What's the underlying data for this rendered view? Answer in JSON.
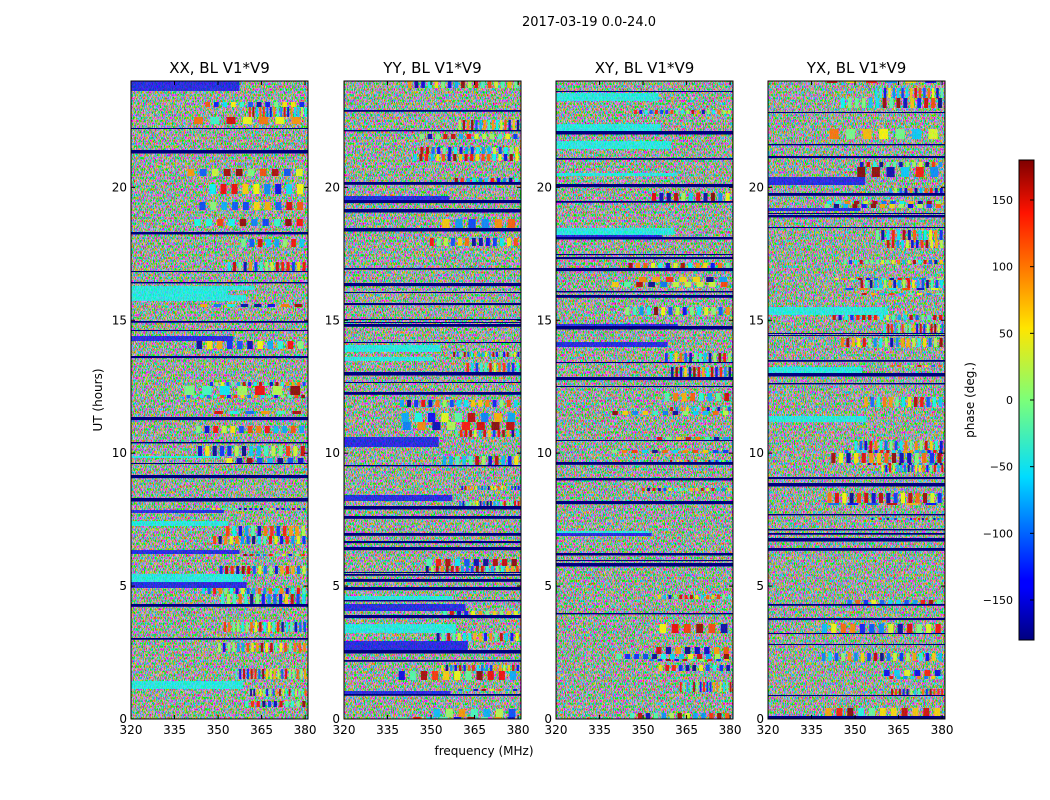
{
  "figure": {
    "suptitle": "2017-03-19 0.0-24.0"
  },
  "chart_data": {
    "type": "heatmap",
    "title": "2017-03-19 0.0-24.0",
    "xlabel": "frequency (MHz)",
    "ylabel": "UT (hours)",
    "xlim": [
      320,
      381
    ],
    "ylim": [
      0,
      24
    ],
    "xticks": [
      "320",
      "335",
      "350",
      "365",
      "380"
    ],
    "yticks": [
      "0",
      "5",
      "10",
      "15",
      "20"
    ],
    "colormap": "jet",
    "colorbar": {
      "label": "phase (deg.)",
      "range": [
        -180,
        180
      ],
      "ticks": [
        "150",
        "100",
        "50",
        "0",
        "−50",
        "−100",
        "−150"
      ]
    },
    "panels": [
      {
        "title": "XX, BL V1*V9"
      },
      {
        "title": "YY, BL V1*V9"
      },
      {
        "title": "XY, BL V1*V9"
      },
      {
        "title": "YX, BL V1*V9"
      }
    ]
  }
}
